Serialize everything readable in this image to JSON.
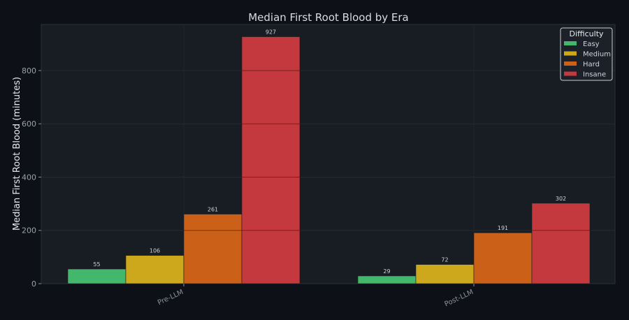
{
  "chart_data": {
    "type": "bar",
    "title": "Median First Root Blood by Era",
    "xlabel": "",
    "ylabel": "Median First Root Blood (minutes)",
    "categories": [
      "Pre-LLM",
      "Post-LLM"
    ],
    "series": [
      {
        "name": "Easy",
        "values": [
          55,
          29
        ],
        "color": "#43b76b"
      },
      {
        "name": "Medium",
        "values": [
          106,
          72
        ],
        "color": "#cda81c"
      },
      {
        "name": "Hard",
        "values": [
          261,
          191
        ],
        "color": "#cb6118"
      },
      {
        "name": "Insane",
        "values": [
          927,
          302
        ],
        "color": "#c4393d"
      }
    ],
    "data_labels": [
      [
        "55",
        "29"
      ],
      [
        "106",
        "72"
      ],
      [
        "261",
        "191"
      ],
      [
        "927",
        "302"
      ]
    ],
    "yticks": [
      0,
      200,
      400,
      600,
      800
    ],
    "ytick_labels": [
      "0",
      "200",
      "400",
      "600",
      "800"
    ],
    "ylim": [
      0,
      973
    ],
    "grid": true,
    "legend": {
      "title": "Difficulty",
      "position": "top-right"
    },
    "colors": {
      "background": "#0d1017",
      "plot_bg": "#181c23"
    }
  }
}
